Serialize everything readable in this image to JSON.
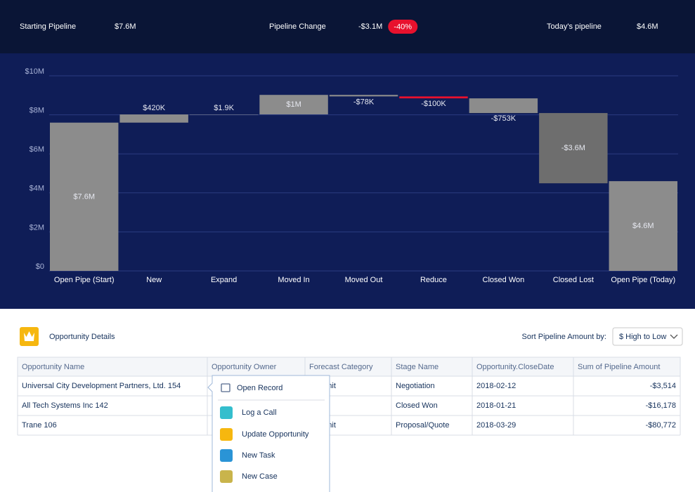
{
  "header": {
    "kpis": [
      {
        "label": "Starting Pipeline",
        "value": "$7.6M"
      },
      {
        "label": "Pipeline Change",
        "value": "-$3.1M",
        "badge": "-40%"
      },
      {
        "label": "Today's pipeline",
        "value": "$4.6M"
      }
    ]
  },
  "chart_data": {
    "type": "waterfall",
    "categories": [
      "Open Pipe (Start)",
      "New",
      "Expand",
      "Moved In",
      "Moved Out",
      "Reduce",
      "Closed Won",
      "Closed Lost",
      "Open Pipe (Today)"
    ],
    "values": [
      7600000,
      420000,
      1900,
      1000000,
      -78000,
      -100000,
      -753000,
      -3600000,
      4600000
    ],
    "value_labels": [
      "$7.6M",
      "$420K",
      "$1.9K",
      "$1M",
      "-$78K",
      "-$100K",
      "-$753K",
      "-$3.6M",
      "$4.6M"
    ],
    "colors": [
      "#8c8c8c",
      "#8c8c8c",
      "#8c8c8c",
      "#8c8c8c",
      "#8c8c8c",
      "#e8112d",
      "#8c8c8c",
      "#6e6e6e",
      "#8c8c8c"
    ],
    "ylim": [
      0,
      10000000
    ],
    "yticks": [
      {
        "value": 0,
        "label": "$0"
      },
      {
        "value": 2000000,
        "label": "$2M"
      },
      {
        "value": 4000000,
        "label": "$4M"
      },
      {
        "value": 6000000,
        "label": "$6M"
      },
      {
        "value": 8000000,
        "label": "$8M"
      },
      {
        "value": 10000000,
        "label": "$10M"
      }
    ],
    "grid": true
  },
  "details": {
    "title": "Opportunity Details",
    "sort_label": "Sort Pipeline Amount by:",
    "sort_value": "$ High to Low",
    "columns": [
      "Opportunity Name",
      "Opportunity Owner",
      "Forecast Category",
      "Stage Name",
      "Opportunity.CloseDate",
      "Sum of Pipeline Amount"
    ],
    "rows": [
      [
        "Universal City Development Partners, Ltd. 154",
        null,
        "Commit",
        "Negotiation",
        "2018-02-12",
        "-$3,514"
      ],
      [
        "All Tech Systems Inc 142",
        null,
        null,
        "Closed Won",
        "2018-01-21",
        "-$16,178"
      ],
      [
        "Trane 106",
        null,
        "Commit",
        "Proposal/Quote",
        "2018-03-29",
        "-$80,772"
      ]
    ]
  },
  "menu": {
    "items": [
      "Open Record",
      "Log a Call",
      "Update Opportunity",
      "New Task",
      "New Case"
    ]
  }
}
